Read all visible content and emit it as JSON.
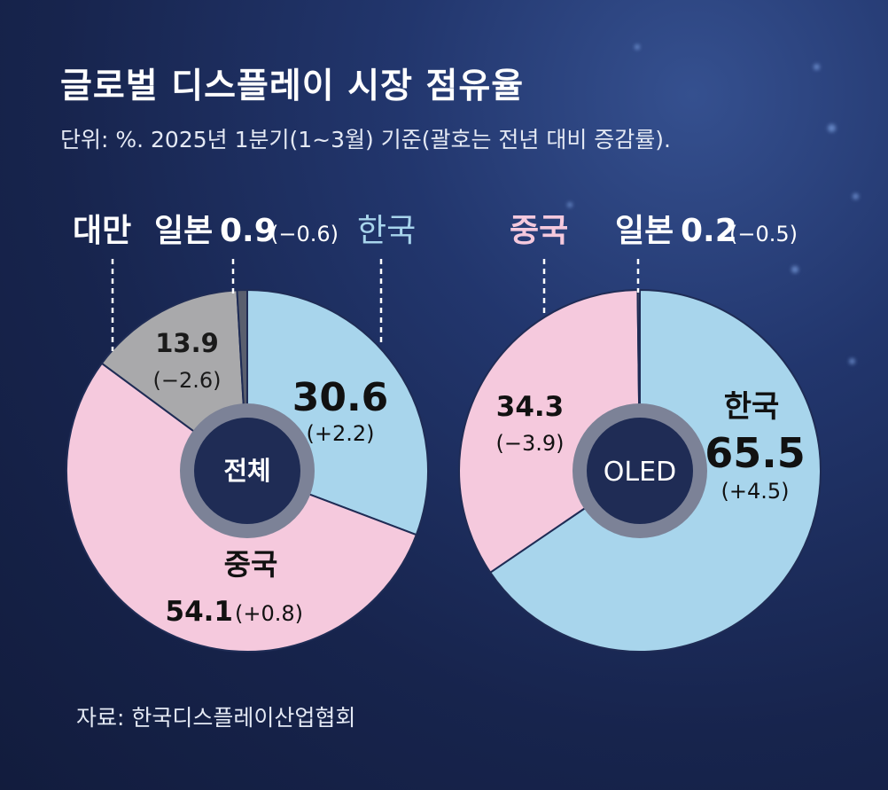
{
  "title": "글로벌 디스플레이 시장 점유율",
  "subtitle": "단위: %. 2025년 1분기(1~3월) 기준(괄호는 전년 대비 증감률).",
  "source": "자료: 한국디스플레이산업협회",
  "colors": {
    "korea": "#a8d5ec",
    "china": "#f5c9dd",
    "taiwan": "#a9a9ab",
    "japan": "#5a5f6e",
    "hole_ring": "#7c8297",
    "hole_center": "#1f2c55"
  },
  "chart_data": [
    {
      "type": "pie",
      "center_label": "전체",
      "segments": [
        {
          "name": "한국",
          "value": 30.6,
          "change": "(+2.2)"
        },
        {
          "name": "중국",
          "value": 54.1,
          "change": "(+0.8)"
        },
        {
          "name": "대만",
          "value": 13.9,
          "change": "(−2.6)"
        },
        {
          "name": "일본",
          "value": 0.9,
          "change": "(−0.6)"
        }
      ]
    },
    {
      "type": "pie",
      "center_label": "OLED",
      "segments": [
        {
          "name": "한국",
          "value": 65.5,
          "change": "(+4.5)"
        },
        {
          "name": "중국",
          "value": 34.3,
          "change": "(−3.9)"
        },
        {
          "name": "일본",
          "value": 0.2,
          "change": "(−0.5)"
        }
      ]
    }
  ]
}
